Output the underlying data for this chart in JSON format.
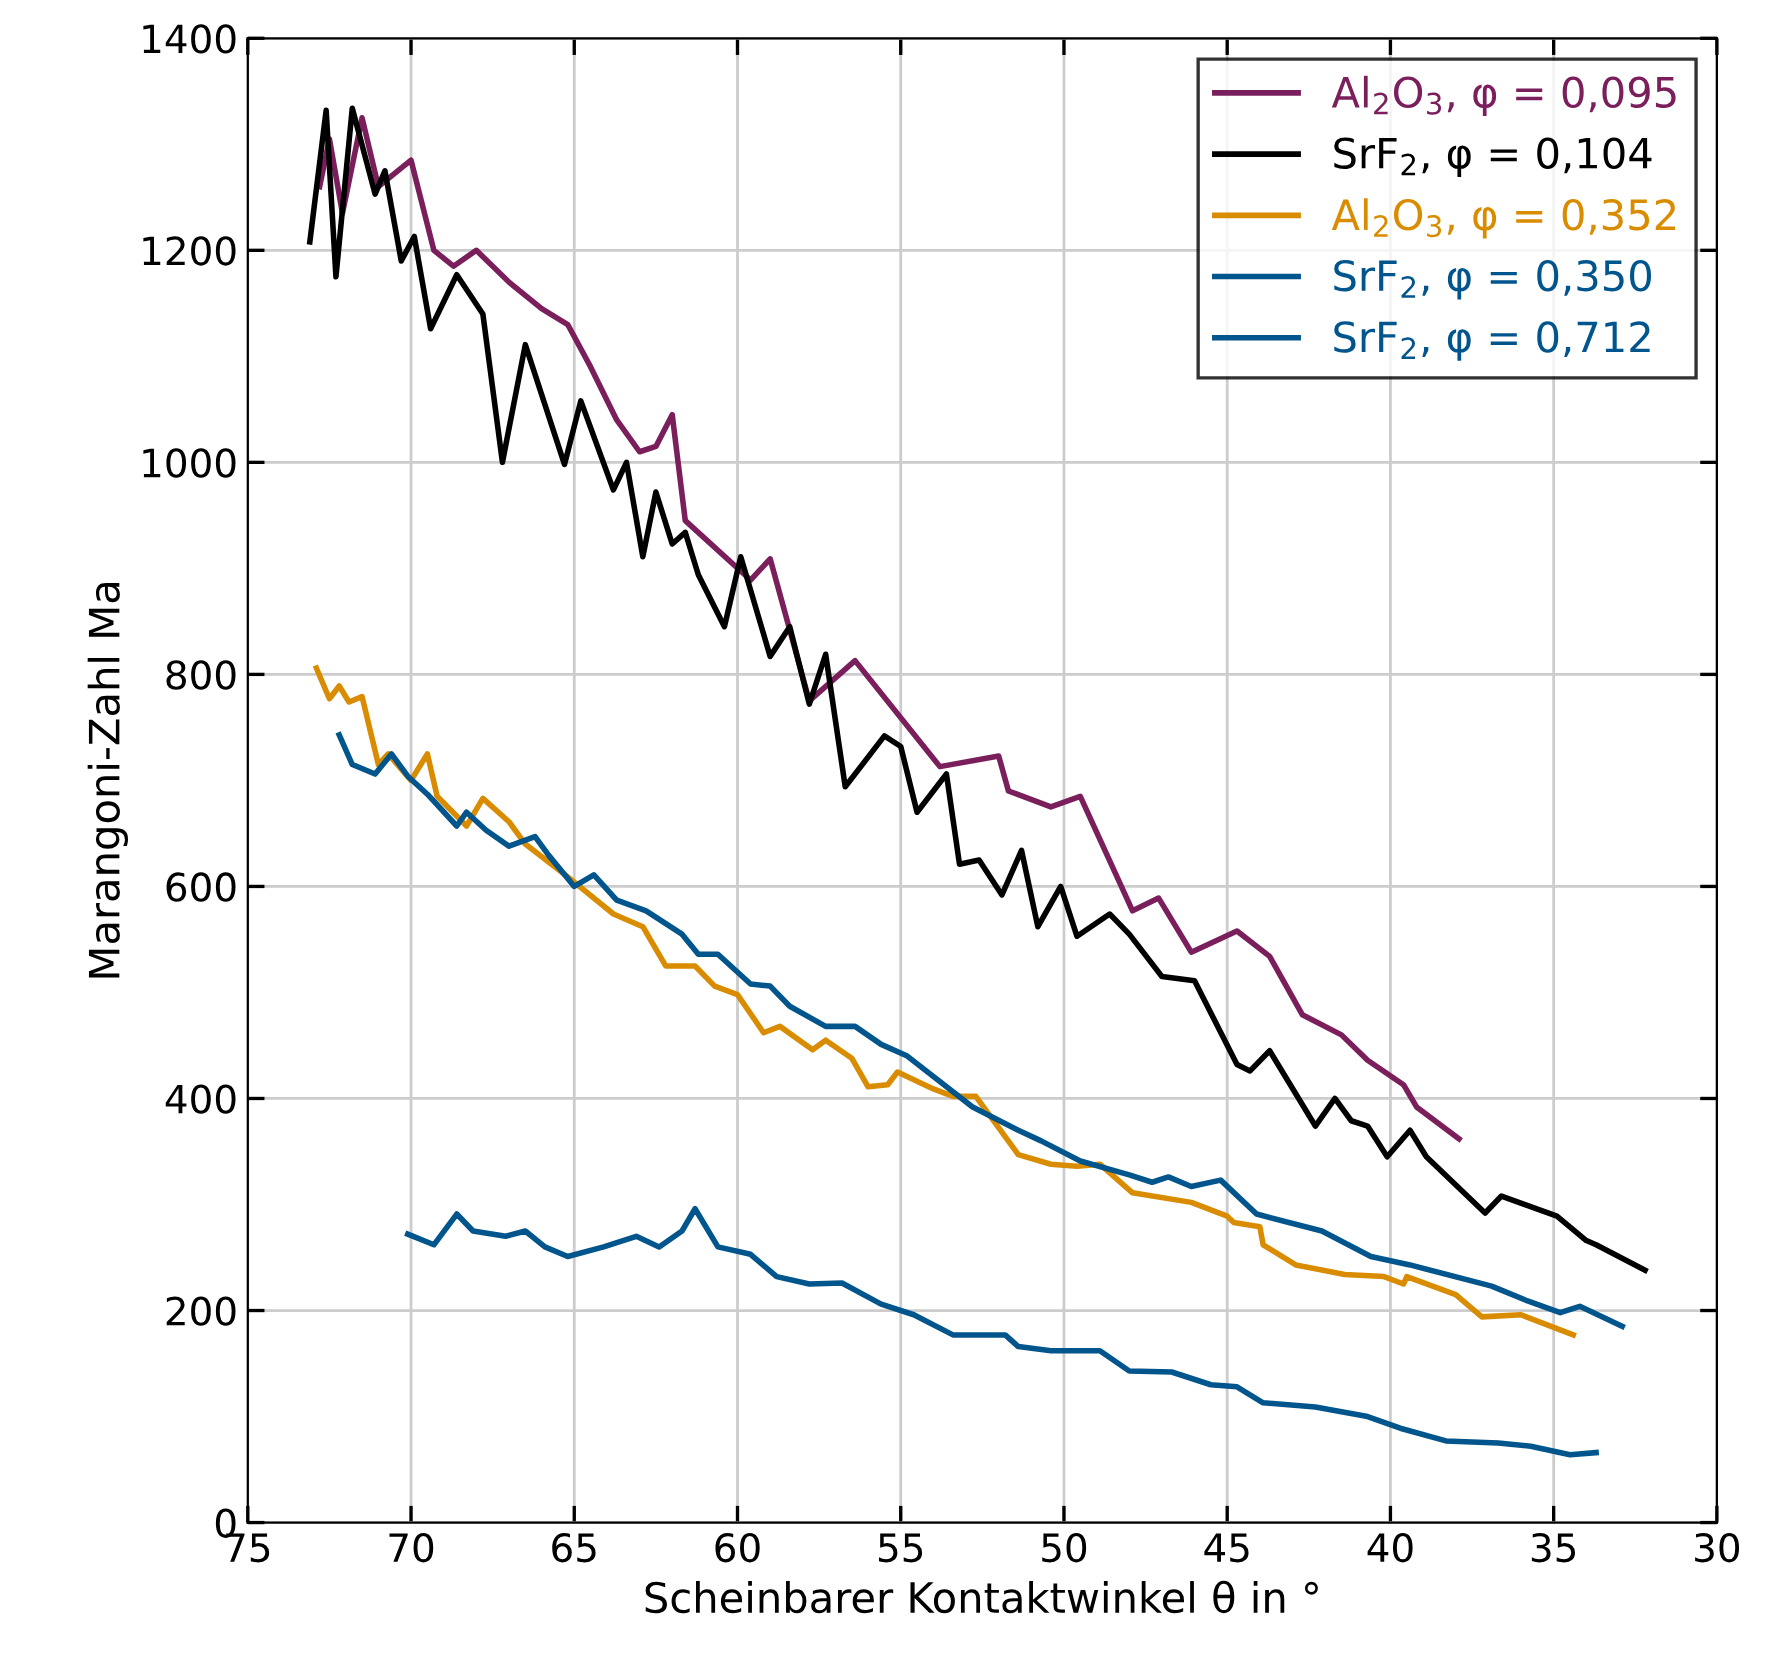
{
  "chart_data": {
    "type": "line",
    "xlabel": "Scheinbarer Kontaktwinkel θ in °",
    "ylabel": "Marangoni-Zahl Ma",
    "xlim": [
      75,
      30
    ],
    "xticks": [
      75,
      70,
      65,
      60,
      55,
      50,
      45,
      40,
      35,
      30
    ],
    "ylim": [
      0,
      1400
    ],
    "yticks": [
      0,
      200,
      400,
      600,
      800,
      1000,
      1200,
      1400
    ],
    "grid": true,
    "legend": "top right",
    "marker": "none",
    "line_style": "solid",
    "series": [
      {
        "name": "Al$_{2}$O$_{3}$, φ = 0,095",
        "color": "#7a1f5c",
        "x": [
          72.8,
          72.5,
          72.1,
          71.5,
          71.0,
          70.0,
          69.3,
          68.7,
          68.0,
          67.0,
          66.0,
          65.2,
          64.5,
          63.7,
          63.0,
          62.5,
          62.0,
          61.6,
          59.6,
          59.0,
          57.8,
          56.4,
          53.8,
          52.0,
          51.7,
          50.4,
          49.5,
          47.9,
          47.1,
          46.1,
          44.7,
          43.7,
          42.7,
          41.5,
          40.7,
          39.6,
          39.2,
          37.9
        ],
        "values": [
          1260,
          1305,
          1235,
          1325,
          1260,
          1285,
          1200,
          1185,
          1200,
          1170,
          1145,
          1130,
          1090,
          1040,
          1010,
          1015,
          1045,
          945,
          889,
          909,
          775,
          813,
          713,
          723,
          690,
          675,
          685,
          577,
          589,
          538,
          558,
          534,
          479,
          460,
          436,
          413,
          392,
          362
        ]
      },
      {
        "name": "SrF$_{2}$, φ = 0,104",
        "color": "#000000",
        "x": [
          73.1,
          72.6,
          72.3,
          71.8,
          71.1,
          70.8,
          70.3,
          69.9,
          69.4,
          68.6,
          67.8,
          67.2,
          66.5,
          65.3,
          64.8,
          63.8,
          63.4,
          62.9,
          62.5,
          62.0,
          61.6,
          61.2,
          60.4,
          59.9,
          59.0,
          58.4,
          57.8,
          57.3,
          56.7,
          55.5,
          55.0,
          54.5,
          53.6,
          53.2,
          52.6,
          51.9,
          51.3,
          50.8,
          50.1,
          49.6,
          48.6,
          48.0,
          47.0,
          46.0,
          44.7,
          44.3,
          43.7,
          42.3,
          41.7,
          41.2,
          40.7,
          40.1,
          39.4,
          38.9,
          37.1,
          36.6,
          34.9,
          34.0,
          33.7,
          32.2
        ],
        "values": [
          1208,
          1332,
          1175,
          1334,
          1253,
          1275,
          1190,
          1213,
          1126,
          1177,
          1140,
          1000,
          1111,
          998,
          1058,
          974,
          1000,
          911,
          972,
          923,
          934,
          894,
          845,
          911,
          817,
          845,
          772,
          819,
          694,
          742,
          732,
          670,
          706,
          621,
          625,
          592,
          634,
          562,
          600,
          553,
          574,
          555,
          515,
          511,
          432,
          426,
          445,
          374,
          400,
          379,
          374,
          345,
          370,
          345,
          292,
          308,
          289,
          266,
          262,
          238
        ]
      },
      {
        "name": "Al$_{2}$O$_{3}$, φ = 0,352",
        "color": "#d98c00",
        "x": [
          72.9,
          72.5,
          72.2,
          71.9,
          71.5,
          71.0,
          70.7,
          70.0,
          69.5,
          69.2,
          68.3,
          67.8,
          67.0,
          66.5,
          65.2,
          63.8,
          62.9,
          62.2,
          61.3,
          60.7,
          60.0,
          59.2,
          58.7,
          57.7,
          57.3,
          56.5,
          56.0,
          55.4,
          55.1,
          54.0,
          53.4,
          52.7,
          51.4,
          50.4,
          49.6,
          48.9,
          47.9,
          46.1,
          45.0,
          44.8,
          44.0,
          43.9,
          42.9,
          41.4,
          40.2,
          39.6,
          39.5,
          38.0,
          37.2,
          36.0,
          34.4
        ],
        "values": [
          806,
          777,
          789,
          774,
          779,
          715,
          725,
          700,
          725,
          685,
          657,
          683,
          661,
          640,
          609,
          574,
          562,
          525,
          525,
          506,
          498,
          462,
          468,
          446,
          455,
          438,
          411,
          413,
          425,
          409,
          402,
          402,
          347,
          338,
          336,
          338,
          311,
          302,
          289,
          283,
          279,
          262,
          243,
          234,
          232,
          225,
          232,
          215,
          194,
          196,
          177
        ]
      },
      {
        "name": "SrF$_{2}$, φ = 0,350",
        "color": "#00558c",
        "x": [
          72.2,
          71.8,
          71.1,
          70.6,
          70.1,
          69.5,
          68.6,
          68.3,
          67.7,
          67.0,
          66.2,
          65.8,
          65.0,
          64.4,
          63.7,
          62.8,
          61.7,
          61.2,
          60.6,
          59.6,
          59.0,
          58.4,
          57.3,
          56.4,
          55.6,
          54.8,
          52.8,
          51.4,
          50.7,
          49.5,
          48.0,
          47.3,
          46.8,
          46.1,
          45.2,
          44.1,
          42.1,
          40.6,
          39.4,
          36.9,
          35.8,
          34.8,
          34.2,
          32.9
        ],
        "values": [
          743,
          715,
          706,
          725,
          704,
          687,
          657,
          670,
          653,
          638,
          647,
          630,
          600,
          611,
          587,
          577,
          555,
          536,
          536,
          508,
          506,
          487,
          468,
          468,
          451,
          440,
          392,
          370,
          360,
          341,
          328,
          321,
          326,
          317,
          323,
          291,
          275,
          251,
          243,
          223,
          209,
          198,
          204,
          185
        ]
      },
      {
        "name": "SrF$_{2}$, φ = 0,712",
        "color": "#00558c",
        "x": [
          70.1,
          69.3,
          68.6,
          68.1,
          67.1,
          66.5,
          65.9,
          65.2,
          64.1,
          63.1,
          62.4,
          61.7,
          61.3,
          60.6,
          59.6,
          58.8,
          57.8,
          56.8,
          55.6,
          54.6,
          53.4,
          52.6,
          51.8,
          51.4,
          50.4,
          48.9,
          48.0,
          46.7,
          45.5,
          44.7,
          43.9,
          42.3,
          40.7,
          39.7,
          38.3,
          36.7,
          35.7,
          34.5,
          33.7
        ],
        "values": [
          272,
          262,
          291,
          275,
          270,
          275,
          260,
          251,
          260,
          270,
          260,
          275,
          296,
          260,
          253,
          232,
          225,
          226,
          206,
          196,
          177,
          177,
          177,
          166,
          162,
          162,
          143,
          142,
          130,
          128,
          113,
          109,
          100,
          89,
          77,
          75,
          72,
          64,
          66
        ]
      }
    ]
  }
}
